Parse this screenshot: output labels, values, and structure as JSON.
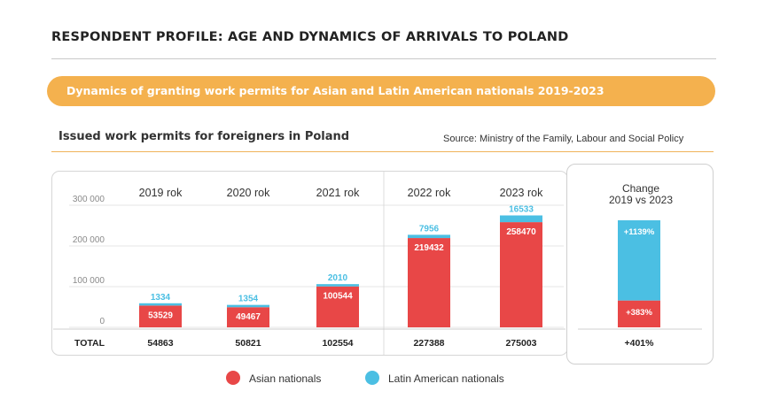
{
  "header": {
    "title": "RESPONDENT PROFILE: AGE AND DYNAMICS OF ARRIVALS TO POLAND",
    "banner": "Dynamics of granting work permits for Asian and Latin American nationals 2019-2023",
    "subtitle": "Issued work permits for foreigners in Poland",
    "source": "Source: Ministry of the Family, Labour and Social Policy"
  },
  "colors": {
    "asian": "#e84747",
    "latin": "#4bbfe3",
    "accent": "#f4b14e"
  },
  "chart_data": {
    "type": "bar",
    "stacked": true,
    "categories": [
      "2019 rok",
      "2020 rok",
      "2021 rok",
      "2022 rok",
      "2023 rok"
    ],
    "series": [
      {
        "name": "Asian nationals",
        "values": [
          53529,
          49467,
          100544,
          219432,
          258470
        ]
      },
      {
        "name": "Latin American nationals",
        "values": [
          1334,
          1354,
          2010,
          7956,
          16533
        ]
      }
    ],
    "total_label": "TOTAL",
    "totals": [
      "54863",
      "50821",
      "102554",
      "227388",
      "275003"
    ],
    "yticks": [
      0,
      100000,
      200000,
      300000
    ],
    "ytick_labels": [
      "0",
      "100 000",
      "200 000",
      "300 000"
    ],
    "ylim": [
      0,
      300000
    ],
    "grid": true,
    "legend": "bottom-center"
  },
  "change": {
    "title_line1": "Change",
    "title_line2": "2019 vs 2023",
    "asian_share": 0.25,
    "asian_label": "+383%",
    "latin_label": "+1139%",
    "total_label": "+401%"
  }
}
